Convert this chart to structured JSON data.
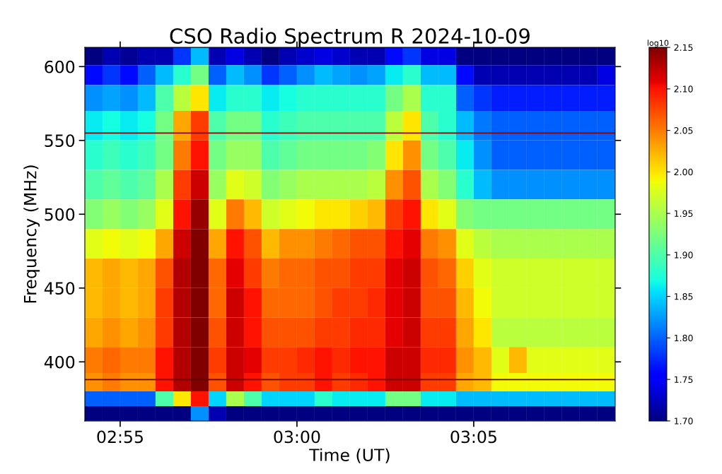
{
  "chart_data": {
    "type": "heatmap",
    "title": "CSO Radio Spectrum R 2024-10-09",
    "xlabel": "Time (UT)",
    "ylabel": "Frequency (MHz)",
    "clabel": "log10",
    "x": [
      2.904167,
      2.9125,
      2.920833,
      2.929167,
      2.9375,
      2.945833,
      2.954167,
      2.9625,
      2.970833,
      2.979167,
      2.9875,
      2.995833,
      3.004167,
      3.0125,
      3.020833,
      3.029167,
      3.0375,
      3.045833,
      3.054167,
      3.0625,
      3.070833,
      3.079167,
      3.0875,
      3.095833,
      3.104167,
      3.1125,
      3.120833,
      3.129167,
      3.1375,
      3.145833
    ],
    "y": [
      607,
      595,
      580,
      560,
      540,
      520,
      500,
      480,
      460,
      440,
      420,
      400,
      385,
      375,
      365
    ],
    "cells": [
      [
        1.7,
        1.72,
        1.71,
        1.72,
        1.72,
        1.78,
        1.84,
        1.72,
        1.74,
        1.72,
        1.7,
        1.72,
        1.73,
        1.74,
        1.73,
        1.72,
        1.72,
        1.76,
        1.78,
        1.74,
        1.74,
        1.7,
        1.7,
        1.7,
        1.7,
        1.7,
        1.7,
        1.7,
        1.7,
        1.7
      ],
      [
        1.76,
        1.78,
        1.76,
        1.8,
        1.84,
        1.88,
        1.92,
        1.8,
        1.84,
        1.82,
        1.78,
        1.8,
        1.82,
        1.84,
        1.83,
        1.82,
        1.83,
        1.86,
        1.88,
        1.84,
        1.84,
        1.76,
        1.72,
        1.72,
        1.72,
        1.72,
        1.72,
        1.72,
        1.72,
        1.74
      ],
      [
        1.82,
        1.83,
        1.82,
        1.84,
        1.9,
        1.96,
        2.0,
        1.86,
        1.88,
        1.88,
        1.86,
        1.87,
        1.88,
        1.88,
        1.88,
        1.88,
        1.88,
        1.92,
        1.95,
        1.88,
        1.88,
        1.8,
        1.78,
        1.77,
        1.77,
        1.77,
        1.77,
        1.77,
        1.77,
        1.77
      ],
      [
        1.86,
        1.87,
        1.86,
        1.87,
        1.92,
        2.03,
        2.08,
        1.9,
        1.92,
        1.92,
        1.88,
        1.89,
        1.9,
        1.9,
        1.9,
        1.9,
        1.9,
        1.96,
        2.0,
        1.9,
        1.88,
        1.84,
        1.81,
        1.8,
        1.8,
        1.8,
        1.8,
        1.8,
        1.8,
        1.8
      ],
      [
        1.88,
        1.89,
        1.88,
        1.89,
        1.92,
        2.05,
        2.1,
        1.92,
        1.94,
        1.94,
        1.9,
        1.91,
        1.92,
        1.92,
        1.92,
        1.92,
        1.93,
        2.0,
        2.04,
        1.92,
        1.9,
        1.86,
        1.82,
        1.8,
        1.8,
        1.8,
        1.8,
        1.8,
        1.8,
        1.8
      ],
      [
        1.9,
        1.91,
        1.9,
        1.91,
        1.95,
        2.08,
        2.12,
        1.94,
        1.98,
        1.97,
        1.93,
        1.94,
        1.95,
        1.95,
        1.95,
        1.95,
        1.96,
        2.04,
        2.07,
        1.95,
        1.93,
        1.88,
        1.84,
        1.82,
        1.82,
        1.82,
        1.82,
        1.82,
        1.82,
        1.82
      ],
      [
        1.93,
        1.94,
        1.93,
        1.94,
        1.98,
        2.1,
        2.14,
        1.98,
        2.05,
        2.02,
        1.97,
        1.98,
        1.99,
        2.0,
        2.0,
        2.01,
        2.02,
        2.08,
        2.1,
        2.0,
        1.98,
        1.93,
        1.92,
        1.92,
        1.92,
        1.92,
        1.92,
        1.92,
        1.92,
        1.92
      ],
      [
        1.98,
        1.99,
        1.98,
        1.99,
        2.03,
        2.12,
        2.15,
        2.03,
        2.1,
        2.07,
        2.02,
        2.04,
        2.04,
        2.05,
        2.06,
        2.07,
        2.07,
        2.1,
        2.11,
        2.05,
        2.04,
        1.98,
        1.96,
        1.95,
        1.95,
        1.95,
        1.95,
        1.95,
        1.95,
        1.95
      ],
      [
        2.02,
        2.03,
        2.02,
        2.03,
        2.07,
        2.13,
        2.15,
        2.06,
        2.11,
        2.08,
        2.05,
        2.06,
        2.06,
        2.07,
        2.07,
        2.08,
        2.08,
        2.11,
        2.12,
        2.07,
        2.06,
        2.01,
        1.98,
        1.97,
        1.97,
        1.97,
        1.97,
        1.97,
        1.97,
        1.97
      ],
      [
        2.02,
        2.03,
        2.02,
        2.03,
        2.08,
        2.13,
        2.15,
        2.06,
        2.12,
        2.1,
        2.06,
        2.06,
        2.06,
        2.07,
        2.08,
        2.08,
        2.09,
        2.11,
        2.12,
        2.07,
        2.07,
        2.02,
        1.99,
        1.97,
        1.97,
        1.97,
        1.97,
        1.97,
        1.97,
        1.97
      ],
      [
        2.03,
        2.04,
        2.03,
        2.04,
        2.08,
        2.13,
        2.15,
        2.07,
        2.12,
        2.1,
        2.07,
        2.07,
        2.07,
        2.08,
        2.08,
        2.09,
        2.09,
        2.11,
        2.12,
        2.08,
        2.08,
        2.03,
        2.0,
        1.96,
        1.96,
        1.96,
        1.96,
        1.96,
        1.96,
        1.96
      ],
      [
        2.05,
        2.06,
        2.05,
        2.05,
        2.1,
        2.13,
        2.15,
        2.08,
        2.12,
        2.11,
        2.08,
        2.08,
        2.09,
        2.1,
        2.09,
        2.1,
        2.1,
        2.12,
        2.12,
        2.09,
        2.09,
        2.04,
        2.02,
        1.98,
        2.02,
        1.98,
        1.98,
        1.98,
        1.98,
        1.98
      ],
      [
        2.04,
        2.05,
        2.04,
        2.04,
        2.1,
        2.13,
        2.15,
        2.07,
        2.12,
        2.1,
        2.07,
        2.08,
        2.08,
        2.1,
        2.08,
        2.09,
        2.1,
        2.12,
        2.12,
        2.08,
        2.08,
        2.03,
        2.02,
        1.99,
        1.99,
        1.99,
        1.99,
        1.99,
        1.99,
        1.99
      ],
      [
        1.8,
        1.8,
        1.8,
        1.8,
        1.9,
        2.0,
        2.1,
        1.85,
        1.95,
        1.9,
        1.85,
        1.85,
        1.85,
        1.88,
        1.86,
        1.86,
        1.86,
        1.92,
        1.92,
        1.86,
        1.86,
        1.84,
        1.84,
        1.84,
        1.84,
        1.84,
        1.84,
        1.84,
        1.84,
        1.84
      ],
      [
        1.7,
        1.7,
        1.7,
        1.7,
        1.7,
        1.7,
        1.82,
        1.72,
        1.7,
        1.7,
        1.7,
        1.7,
        1.7,
        1.7,
        1.7,
        1.7,
        1.7,
        1.7,
        1.7,
        1.7,
        1.7,
        1.7,
        1.7,
        1.7,
        1.7,
        1.7,
        1.7,
        1.7,
        1.7,
        1.7
      ]
    ],
    "xlim": [
      2.9,
      3.15
    ],
    "xticks": [
      {
        "value": 2.916667,
        "label": "02:55"
      },
      {
        "value": 3.0,
        "label": "03:00"
      },
      {
        "value": 3.083333,
        "label": "03:05"
      }
    ],
    "ylim": [
      360,
      613
    ],
    "yticks": [
      400,
      450,
      500,
      550,
      600
    ],
    "clim": [
      1.7,
      2.15
    ],
    "cticks": [
      {
        "value": 1.7,
        "label": "1.70"
      },
      {
        "value": 1.75,
        "label": "1.75"
      },
      {
        "value": 1.8,
        "label": "1.80"
      },
      {
        "value": 1.85,
        "label": "1.85"
      },
      {
        "value": 1.9,
        "label": "1.90"
      },
      {
        "value": 1.95,
        "label": "1.95"
      },
      {
        "value": 2.0,
        "label": "2.00"
      },
      {
        "value": 2.05,
        "label": "2.05"
      },
      {
        "value": 2.1,
        "label": "2.10"
      },
      {
        "value": 2.15,
        "label": "2.15"
      }
    ],
    "ref_lines": [
      {
        "axis": "y",
        "value": 555,
        "color": "#8b0000",
        "line_style": "solid"
      },
      {
        "axis": "y",
        "value": 388,
        "color": "#5a0000",
        "line_style": "solid"
      }
    ],
    "grid": false
  }
}
